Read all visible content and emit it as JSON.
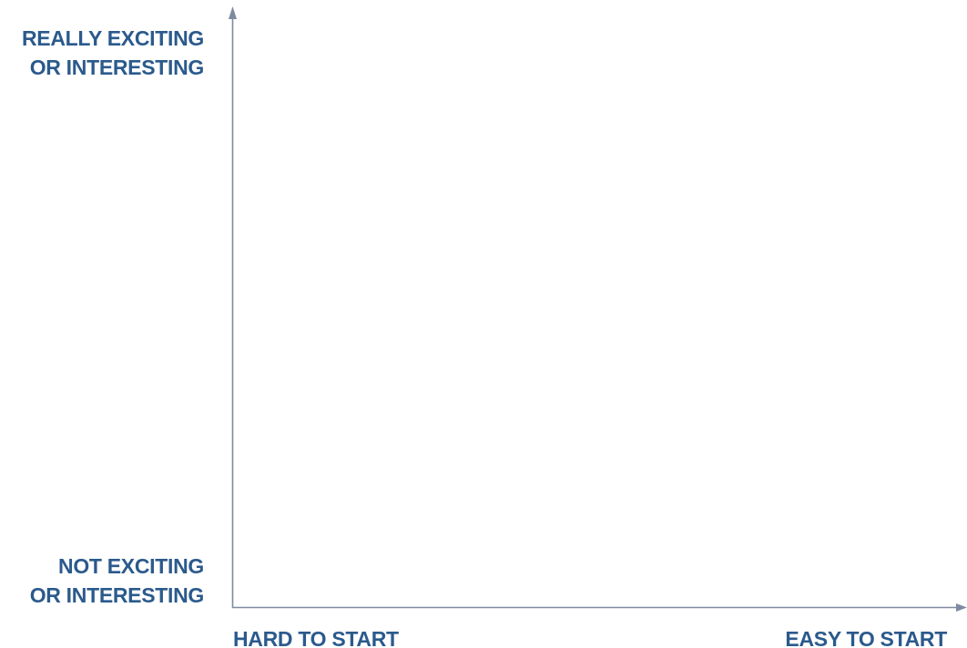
{
  "y_axis": {
    "top_label_line1": "REALLY EXCITING",
    "top_label_line2": "OR INTERESTING",
    "bottom_label_line1": "NOT EXCITING",
    "bottom_label_line2": "OR INTERESTING"
  },
  "x_axis": {
    "left_label": "HARD TO START",
    "right_label": "EASY TO START"
  },
  "colors": {
    "label_text": "#2b5a8c",
    "axis_line": "#7f8aa0"
  }
}
